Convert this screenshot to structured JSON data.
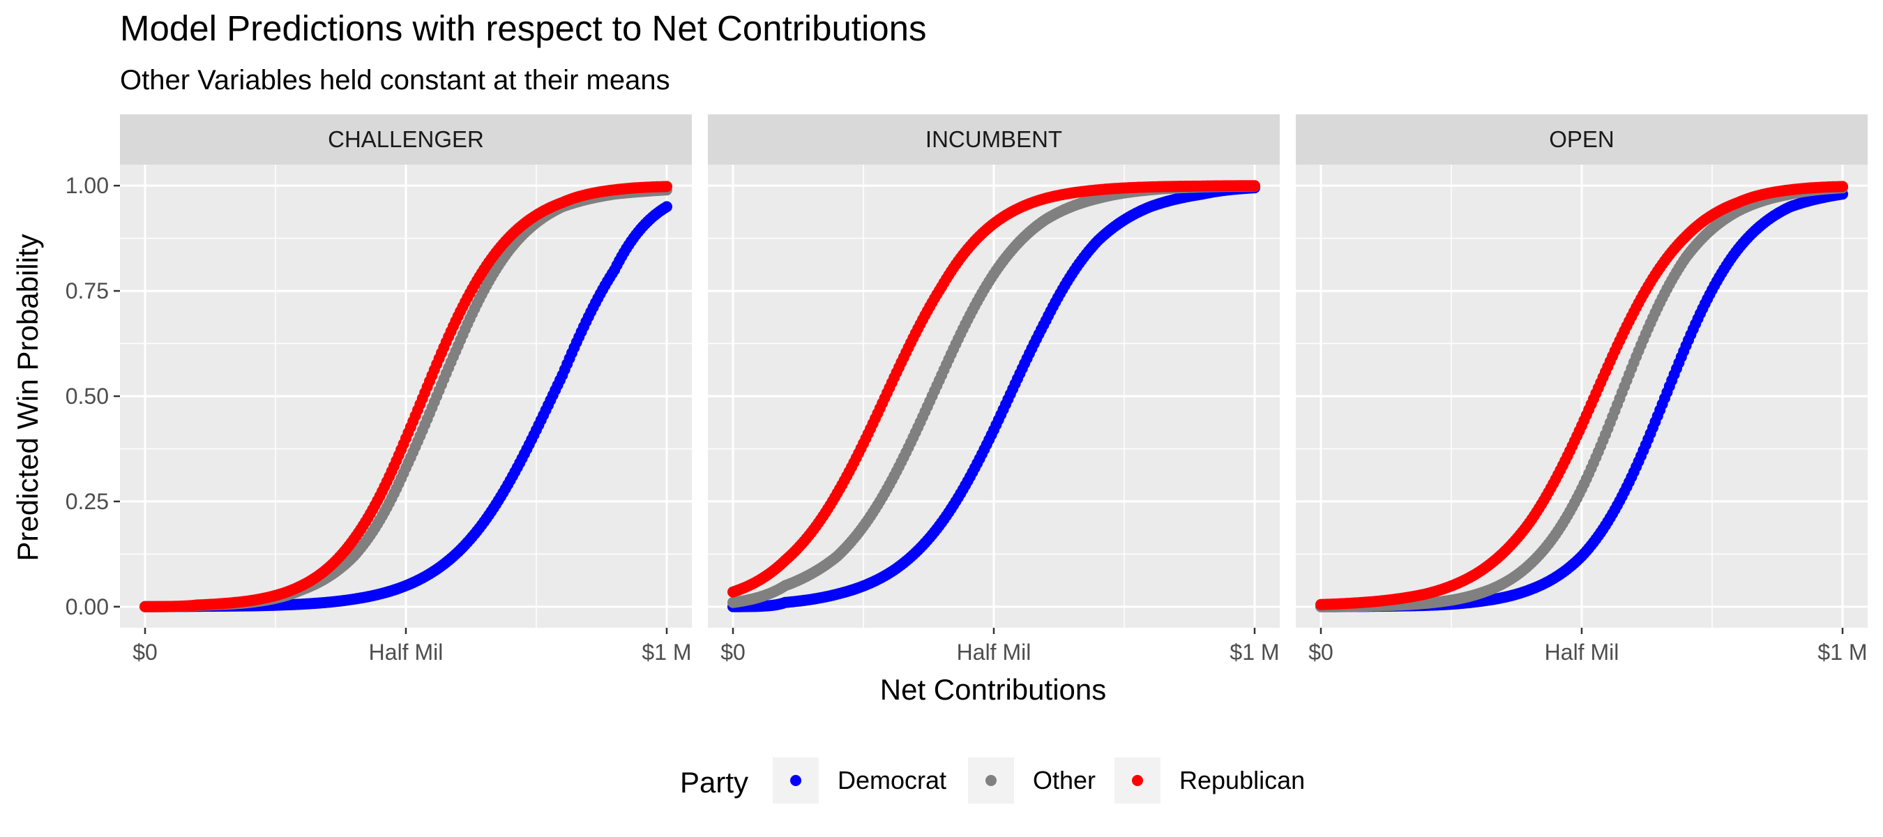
{
  "chart_data": {
    "type": "scatter",
    "title": "Model Predictions with respect to Net Contributions",
    "subtitle": "Other Variables held constant at their means",
    "xlabel": "Net Contributions",
    "ylabel": "Predicted Win Probability",
    "x_range": [
      0,
      1000000
    ],
    "ylim": [
      -0.05,
      1.05
    ],
    "x_ticks": [
      {
        "value": 0,
        "label": "$0"
      },
      {
        "value": 500000,
        "label": "Half Mil"
      },
      {
        "value": 1000000,
        "label": "$1 M"
      }
    ],
    "y_ticks": [
      {
        "value": 0,
        "label": "0.00"
      },
      {
        "value": 0.25,
        "label": "0.25"
      },
      {
        "value": 0.5,
        "label": "0.50"
      },
      {
        "value": 0.75,
        "label": "0.75"
      },
      {
        "value": 1,
        "label": "1.00"
      }
    ],
    "grid": true,
    "legend_position": "bottom",
    "legend_title": "Party",
    "panels": [
      {
        "label": "CHALLENGER",
        "series": [
          {
            "name": "Democrat",
            "color": "#0000FF",
            "x": [
              0,
              100000,
              200000,
              300000,
              400000,
              500000,
              600000,
              700000,
              800000,
              900000,
              1000000
            ],
            "y": [
              0.0,
              0.001,
              0.002,
              0.006,
              0.018,
              0.05,
              0.13,
              0.3,
              0.55,
              0.8,
              0.95
            ]
          },
          {
            "name": "Other",
            "color": "#808080",
            "x": [
              0,
              100000,
              200000,
              300000,
              400000,
              500000,
              600000,
              700000,
              800000,
              900000,
              1000000
            ],
            "y": [
              0.0,
              0.003,
              0.01,
              0.04,
              0.12,
              0.33,
              0.62,
              0.85,
              0.95,
              0.98,
              0.99
            ]
          },
          {
            "name": "Republican",
            "color": "#FF0000",
            "x": [
              0,
              100000,
              200000,
              300000,
              400000,
              500000,
              600000,
              700000,
              800000,
              900000,
              1000000
            ],
            "y": [
              0.0,
              0.004,
              0.014,
              0.05,
              0.16,
              0.4,
              0.69,
              0.88,
              0.96,
              0.99,
              0.998
            ]
          }
        ]
      },
      {
        "label": "INCUMBENT",
        "series": [
          {
            "name": "Democrat",
            "color": "#0000FF",
            "x": [
              0,
              100000,
              200000,
              300000,
              400000,
              500000,
              600000,
              700000,
              800000,
              900000,
              1000000
            ],
            "y": [
              0.0,
              0.01,
              0.03,
              0.08,
              0.2,
              0.42,
              0.68,
              0.87,
              0.95,
              0.98,
              0.995
            ]
          },
          {
            "name": "Other",
            "color": "#808080",
            "x": [
              0,
              100000,
              200000,
              300000,
              400000,
              500000,
              600000,
              700000,
              800000,
              900000,
              1000000
            ],
            "y": [
              0.01,
              0.05,
              0.12,
              0.29,
              0.55,
              0.79,
              0.92,
              0.97,
              0.99,
              0.997,
              0.999
            ]
          },
          {
            "name": "Republican",
            "color": "#FF0000",
            "x": [
              0,
              100000,
              200000,
              300000,
              400000,
              500000,
              600000,
              700000,
              800000,
              900000,
              1000000
            ],
            "y": [
              0.035,
              0.11,
              0.27,
              0.52,
              0.76,
              0.91,
              0.97,
              0.99,
              0.997,
              0.999,
              1.0
            ]
          }
        ]
      },
      {
        "label": "OPEN",
        "series": [
          {
            "name": "Democrat",
            "color": "#0000FF",
            "x": [
              0,
              100000,
              200000,
              300000,
              400000,
              500000,
              600000,
              700000,
              800000,
              900000,
              1000000
            ],
            "y": [
              0.0,
              0.001,
              0.003,
              0.012,
              0.04,
              0.12,
              0.32,
              0.62,
              0.85,
              0.95,
              0.98
            ]
          },
          {
            "name": "Other",
            "color": "#808080",
            "x": [
              0,
              100000,
              200000,
              300000,
              400000,
              500000,
              600000,
              700000,
              800000,
              900000,
              1000000
            ],
            "y": [
              0.0,
              0.002,
              0.008,
              0.03,
              0.1,
              0.28,
              0.58,
              0.83,
              0.94,
              0.98,
              0.995
            ]
          },
          {
            "name": "Republican",
            "color": "#FF0000",
            "x": [
              0,
              100000,
              200000,
              300000,
              400000,
              500000,
              600000,
              700000,
              800000,
              900000,
              1000000
            ],
            "y": [
              0.005,
              0.012,
              0.03,
              0.08,
              0.2,
              0.43,
              0.7,
              0.88,
              0.96,
              0.99,
              0.998
            ]
          }
        ]
      }
    ]
  }
}
